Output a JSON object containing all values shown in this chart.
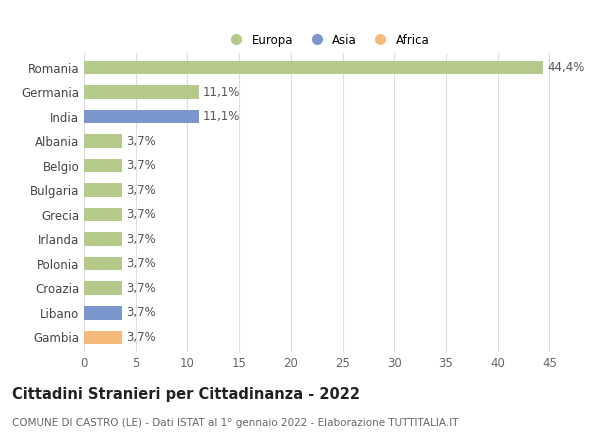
{
  "categories": [
    "Romania",
    "Germania",
    "India",
    "Albania",
    "Belgio",
    "Bulgaria",
    "Grecia",
    "Irlanda",
    "Polonia",
    "Croazia",
    "Libano",
    "Gambia"
  ],
  "values": [
    44.4,
    11.1,
    11.1,
    3.7,
    3.7,
    3.7,
    3.7,
    3.7,
    3.7,
    3.7,
    3.7,
    3.7
  ],
  "colors": [
    "#b5c98a",
    "#b5c98a",
    "#7b96cc",
    "#b5c98a",
    "#b5c98a",
    "#b5c98a",
    "#b5c98a",
    "#b5c98a",
    "#b5c98a",
    "#b5c98a",
    "#7b96cc",
    "#f5b97a"
  ],
  "labels": [
    "44,4%",
    "11,1%",
    "11,1%",
    "3,7%",
    "3,7%",
    "3,7%",
    "3,7%",
    "3,7%",
    "3,7%",
    "3,7%",
    "3,7%",
    "3,7%"
  ],
  "legend_labels": [
    "Europa",
    "Asia",
    "Africa"
  ],
  "legend_colors": [
    "#b5c98a",
    "#7b96cc",
    "#f5b97a"
  ],
  "title": "Cittadini Stranieri per Cittadinanza - 2022",
  "subtitle": "COMUNE DI CASTRO (LE) - Dati ISTAT al 1° gennaio 2022 - Elaborazione TUTTITALIA.IT",
  "xlim": [
    0,
    47
  ],
  "xticks": [
    0,
    5,
    10,
    15,
    20,
    25,
    30,
    35,
    40,
    45
  ],
  "bg_color": "#ffffff",
  "grid_color": "#dddddd",
  "bar_height": 0.55,
  "label_fontsize": 8.5,
  "tick_fontsize": 8.5,
  "title_fontsize": 10.5,
  "subtitle_fontsize": 7.5
}
